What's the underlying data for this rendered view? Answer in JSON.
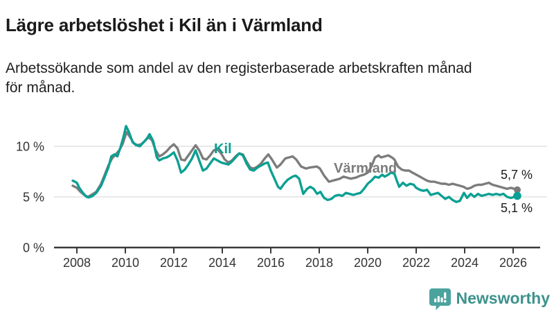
{
  "header": {
    "title": "Lägre arbetslöshet i Kil än i Värmland",
    "subtitle_line1": "Arbetssökande som andel av den registerbaserade arbetskraften månad",
    "subtitle_line2": "för månad."
  },
  "chart_data": {
    "type": "line",
    "title": "Lägre arbetslöshet i Kil än i Värmland",
    "subtitle": "Arbetssökande som andel av den registerbaserade arbetskraften månad för månad.",
    "unit": "%",
    "xlim": [
      2007.6,
      2026.6
    ],
    "ylim": [
      0,
      12.5
    ],
    "grid": "horizontal",
    "y_ticks": [
      {
        "value": 0,
        "label": "0 %"
      },
      {
        "value": 5,
        "label": "5 %"
      },
      {
        "value": 10,
        "label": "10 %"
      }
    ],
    "x_ticks": [
      {
        "value": 2008,
        "label": "2008"
      },
      {
        "value": 2010,
        "label": "2010"
      },
      {
        "value": 2012,
        "label": "2012"
      },
      {
        "value": 2014,
        "label": "2014"
      },
      {
        "value": 2016,
        "label": "2016"
      },
      {
        "value": 2018,
        "label": "2018"
      },
      {
        "value": 2020,
        "label": "2020"
      },
      {
        "value": 2022,
        "label": "2022"
      },
      {
        "value": 2024,
        "label": "2024"
      },
      {
        "value": 2026,
        "label": "2026"
      }
    ],
    "series": [
      {
        "name": "Kil",
        "key": "kil",
        "color": "#0ba093",
        "end_value": 5.1,
        "end_label": "5,1 %",
        "points": [
          [
            2007.83,
            6.6
          ],
          [
            2007.92,
            6.5
          ],
          [
            2008.0,
            6.4
          ],
          [
            2008.1,
            5.9
          ],
          [
            2008.25,
            5.4
          ],
          [
            2008.4,
            5.0
          ],
          [
            2008.5,
            4.95
          ],
          [
            2008.65,
            5.1
          ],
          [
            2008.8,
            5.4
          ],
          [
            2009.0,
            6.1
          ],
          [
            2009.15,
            7.0
          ],
          [
            2009.3,
            7.9
          ],
          [
            2009.42,
            9.0
          ],
          [
            2009.55,
            9.2
          ],
          [
            2009.67,
            9.0
          ],
          [
            2009.8,
            9.9
          ],
          [
            2009.92,
            10.9
          ],
          [
            2010.03,
            12.0
          ],
          [
            2010.15,
            11.4
          ],
          [
            2010.3,
            10.4
          ],
          [
            2010.45,
            10.1
          ],
          [
            2010.6,
            10.0
          ],
          [
            2010.75,
            10.4
          ],
          [
            2010.9,
            10.8
          ],
          [
            2011.0,
            11.2
          ],
          [
            2011.15,
            10.5
          ],
          [
            2011.3,
            8.9
          ],
          [
            2011.4,
            8.6
          ],
          [
            2011.55,
            8.8
          ],
          [
            2011.7,
            8.9
          ],
          [
            2011.85,
            9.1
          ],
          [
            2012.0,
            9.4
          ],
          [
            2012.15,
            8.6
          ],
          [
            2012.3,
            7.4
          ],
          [
            2012.45,
            7.7
          ],
          [
            2012.6,
            8.2
          ],
          [
            2012.75,
            8.8
          ],
          [
            2012.9,
            9.6
          ],
          [
            2013.05,
            8.6
          ],
          [
            2013.2,
            7.6
          ],
          [
            2013.35,
            7.8
          ],
          [
            2013.5,
            8.3
          ],
          [
            2013.65,
            8.8
          ],
          [
            2013.8,
            8.6
          ],
          [
            2013.95,
            8.4
          ],
          [
            2014.1,
            8.3
          ],
          [
            2014.25,
            8.2
          ],
          [
            2014.4,
            8.5
          ],
          [
            2014.55,
            8.9
          ],
          [
            2014.7,
            9.3
          ],
          [
            2014.85,
            9.1
          ],
          [
            2015.0,
            8.3
          ],
          [
            2015.15,
            7.7
          ],
          [
            2015.3,
            7.6
          ],
          [
            2015.45,
            7.9
          ],
          [
            2015.6,
            8.1
          ],
          [
            2015.75,
            8.3
          ],
          [
            2015.88,
            8.4
          ],
          [
            2016.0,
            7.6
          ],
          [
            2016.15,
            6.8
          ],
          [
            2016.3,
            6.0
          ],
          [
            2016.4,
            5.8
          ],
          [
            2016.55,
            6.3
          ],
          [
            2016.7,
            6.7
          ],
          [
            2016.9,
            7.0
          ],
          [
            2017.03,
            7.1
          ],
          [
            2017.17,
            6.8
          ],
          [
            2017.34,
            5.3
          ],
          [
            2017.5,
            5.8
          ],
          [
            2017.63,
            6.0
          ],
          [
            2017.77,
            5.8
          ],
          [
            2017.91,
            5.3
          ],
          [
            2018.05,
            5.5
          ],
          [
            2018.2,
            4.9
          ],
          [
            2018.35,
            4.7
          ],
          [
            2018.5,
            4.8
          ],
          [
            2018.65,
            5.1
          ],
          [
            2018.8,
            5.2
          ],
          [
            2018.95,
            5.1
          ],
          [
            2019.1,
            5.4
          ],
          [
            2019.25,
            5.3
          ],
          [
            2019.4,
            5.2
          ],
          [
            2019.55,
            5.3
          ],
          [
            2019.7,
            5.4
          ],
          [
            2019.85,
            5.8
          ],
          [
            2020.0,
            6.3
          ],
          [
            2020.15,
            6.6
          ],
          [
            2020.3,
            7.0
          ],
          [
            2020.45,
            6.9
          ],
          [
            2020.6,
            7.2
          ],
          [
            2020.7,
            7.0
          ],
          [
            2020.85,
            7.2
          ],
          [
            2020.95,
            7.4
          ],
          [
            2021.1,
            7.3
          ],
          [
            2021.2,
            6.6
          ],
          [
            2021.3,
            6.0
          ],
          [
            2021.45,
            6.4
          ],
          [
            2021.6,
            6.1
          ],
          [
            2021.75,
            6.3
          ],
          [
            2021.9,
            6.2
          ],
          [
            2022.0,
            5.9
          ],
          [
            2022.15,
            5.7
          ],
          [
            2022.3,
            5.6
          ],
          [
            2022.45,
            5.7
          ],
          [
            2022.6,
            5.2
          ],
          [
            2022.75,
            5.3
          ],
          [
            2022.9,
            5.4
          ],
          [
            2023.05,
            5.1
          ],
          [
            2023.2,
            4.8
          ],
          [
            2023.35,
            5.0
          ],
          [
            2023.5,
            4.7
          ],
          [
            2023.65,
            4.5
          ],
          [
            2023.8,
            4.6
          ],
          [
            2023.97,
            5.4
          ],
          [
            2024.1,
            4.9
          ],
          [
            2024.25,
            5.3
          ],
          [
            2024.4,
            5.0
          ],
          [
            2024.55,
            5.3
          ],
          [
            2024.7,
            5.1
          ],
          [
            2024.85,
            5.2
          ],
          [
            2025.0,
            5.3
          ],
          [
            2025.15,
            5.2
          ],
          [
            2025.3,
            5.3
          ],
          [
            2025.45,
            5.2
          ],
          [
            2025.6,
            5.3
          ],
          [
            2025.75,
            5.0
          ],
          [
            2025.9,
            4.9
          ],
          [
            2026.05,
            5.0
          ],
          [
            2026.17,
            5.1
          ]
        ]
      },
      {
        "name": "Värmland",
        "key": "varmland",
        "color": "#7c7c7c",
        "end_value": 5.7,
        "end_label": "5,7 %",
        "points": [
          [
            2007.83,
            6.1
          ],
          [
            2008.0,
            5.9
          ],
          [
            2008.15,
            5.5
          ],
          [
            2008.3,
            5.2
          ],
          [
            2008.45,
            5.0
          ],
          [
            2008.6,
            5.2
          ],
          [
            2008.8,
            5.5
          ],
          [
            2009.0,
            6.3
          ],
          [
            2009.15,
            7.2
          ],
          [
            2009.3,
            8.1
          ],
          [
            2009.45,
            8.8
          ],
          [
            2009.6,
            9.2
          ],
          [
            2009.75,
            9.6
          ],
          [
            2009.9,
            10.3
          ],
          [
            2010.05,
            11.4
          ],
          [
            2010.2,
            10.9
          ],
          [
            2010.35,
            10.3
          ],
          [
            2010.5,
            10.1
          ],
          [
            2010.65,
            10.2
          ],
          [
            2010.8,
            10.5
          ],
          [
            2010.95,
            10.9
          ],
          [
            2011.1,
            10.6
          ],
          [
            2011.25,
            9.6
          ],
          [
            2011.4,
            9.0
          ],
          [
            2011.55,
            9.2
          ],
          [
            2011.7,
            9.5
          ],
          [
            2011.85,
            9.9
          ],
          [
            2012.0,
            10.2
          ],
          [
            2012.15,
            9.8
          ],
          [
            2012.3,
            8.7
          ],
          [
            2012.45,
            8.6
          ],
          [
            2012.6,
            9.1
          ],
          [
            2012.75,
            9.6
          ],
          [
            2012.9,
            10.1
          ],
          [
            2013.05,
            9.6
          ],
          [
            2013.2,
            8.8
          ],
          [
            2013.35,
            8.7
          ],
          [
            2013.5,
            9.1
          ],
          [
            2013.65,
            9.6
          ],
          [
            2013.8,
            9.7
          ],
          [
            2013.95,
            9.3
          ],
          [
            2014.1,
            8.7
          ],
          [
            2014.25,
            8.4
          ],
          [
            2014.4,
            8.6
          ],
          [
            2014.55,
            9.0
          ],
          [
            2014.7,
            9.3
          ],
          [
            2014.85,
            9.2
          ],
          [
            2015.0,
            8.5
          ],
          [
            2015.15,
            7.9
          ],
          [
            2015.3,
            7.8
          ],
          [
            2015.45,
            8.0
          ],
          [
            2015.6,
            8.3
          ],
          [
            2015.75,
            8.8
          ],
          [
            2015.9,
            9.2
          ],
          [
            2016.05,
            8.7
          ],
          [
            2016.25,
            7.9
          ],
          [
            2016.4,
            8.2
          ],
          [
            2016.6,
            8.8
          ],
          [
            2016.9,
            9.0
          ],
          [
            2017.05,
            8.7
          ],
          [
            2017.25,
            8.0
          ],
          [
            2017.45,
            7.8
          ],
          [
            2017.6,
            7.9
          ],
          [
            2017.9,
            8.0
          ],
          [
            2018.03,
            7.8
          ],
          [
            2018.2,
            7.1
          ],
          [
            2018.4,
            6.5
          ],
          [
            2018.55,
            6.6
          ],
          [
            2018.7,
            6.7
          ],
          [
            2018.85,
            6.8
          ],
          [
            2019.0,
            7.0
          ],
          [
            2019.15,
            6.9
          ],
          [
            2019.3,
            6.8
          ],
          [
            2019.5,
            6.9
          ],
          [
            2019.7,
            7.1
          ],
          [
            2019.85,
            7.2
          ],
          [
            2020.0,
            7.4
          ],
          [
            2020.15,
            8.0
          ],
          [
            2020.3,
            8.9
          ],
          [
            2020.45,
            9.1
          ],
          [
            2020.55,
            8.9
          ],
          [
            2020.7,
            9.0
          ],
          [
            2020.85,
            9.1
          ],
          [
            2021.0,
            8.9
          ],
          [
            2021.1,
            8.7
          ],
          [
            2021.25,
            8.0
          ],
          [
            2021.4,
            7.7
          ],
          [
            2021.55,
            7.6
          ],
          [
            2021.7,
            7.6
          ],
          [
            2021.85,
            7.4
          ],
          [
            2022.0,
            7.2
          ],
          [
            2022.15,
            7.0
          ],
          [
            2022.3,
            6.8
          ],
          [
            2022.45,
            6.6
          ],
          [
            2022.6,
            6.5
          ],
          [
            2022.75,
            6.5
          ],
          [
            2022.9,
            6.4
          ],
          [
            2023.05,
            6.3
          ],
          [
            2023.2,
            6.3
          ],
          [
            2023.35,
            6.2
          ],
          [
            2023.5,
            6.3
          ],
          [
            2023.65,
            6.2
          ],
          [
            2023.8,
            6.1
          ],
          [
            2023.95,
            6.0
          ],
          [
            2024.1,
            5.8
          ],
          [
            2024.25,
            5.9
          ],
          [
            2024.4,
            6.1
          ],
          [
            2024.55,
            6.2
          ],
          [
            2024.7,
            6.2
          ],
          [
            2024.85,
            6.3
          ],
          [
            2025.0,
            6.4
          ],
          [
            2025.15,
            6.2
          ],
          [
            2025.3,
            6.1
          ],
          [
            2025.45,
            6.0
          ],
          [
            2025.6,
            5.9
          ],
          [
            2025.75,
            5.8
          ],
          [
            2025.9,
            5.9
          ],
          [
            2026.05,
            5.8
          ],
          [
            2026.17,
            5.7
          ]
        ]
      }
    ],
    "colors": {
      "kil_teal": "#0ba093",
      "varmland_gray": "#7c7c7c",
      "axis": "#3a3a3a",
      "gridline": "#e2e2e2",
      "text": "#1a1a1a"
    }
  },
  "footer": {
    "brand": "Newsworthy",
    "logo_icon": "newsworthy-chart-bubble-icon",
    "brand_color": "#3d928c",
    "icon_color": "#4ba39e"
  }
}
